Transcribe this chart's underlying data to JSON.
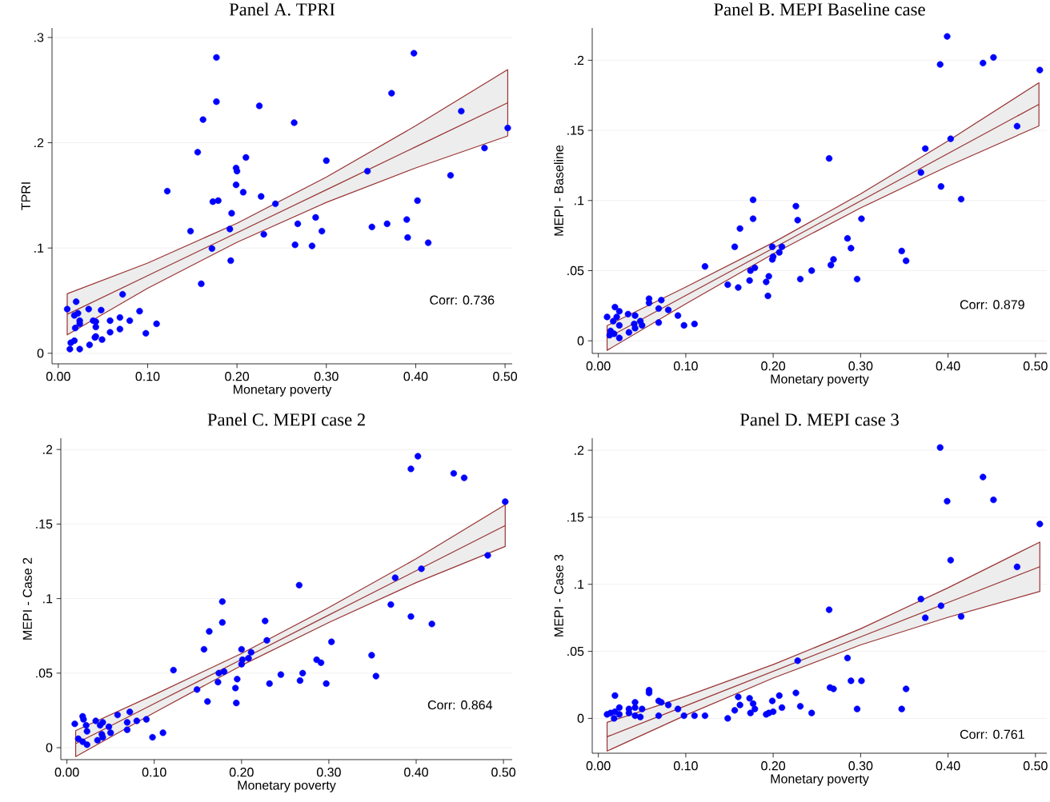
{
  "chart_data": [
    {
      "type": "scatter",
      "title": "Panel A. TPRI",
      "xlabel": "Monetary poverty",
      "ylabel": "TPRI",
      "grid": "y",
      "xlim": [
        -0.007,
        0.508
      ],
      "ylim": [
        -0.01,
        0.309
      ],
      "xticks": [
        {
          "value": 0,
          "label": "0.00"
        },
        {
          "value": 0.1,
          "label": "0.10"
        },
        {
          "value": 0.2,
          "label": "0.20"
        },
        {
          "value": 0.3,
          "label": "0.30"
        },
        {
          "value": 0.4,
          "label": "0.40"
        },
        {
          "value": 0.5,
          "label": "0.50"
        }
      ],
      "yticks": [
        0,
        {
          "value": 0.1,
          "label": ".1"
        },
        {
          "value": 0.2,
          "label": ".2"
        },
        {
          "value": 0.3,
          "label": ".3"
        }
      ],
      "series": [
        {
          "marker": "circle",
          "color": "#0000ff",
          "x": [
            0.177,
            0.177,
            0.162,
            0.225,
            0.264,
            0.156,
            0.21,
            0.199,
            0.2,
            0.3,
            0.122,
            0.199,
            0.207,
            0.173,
            0.179,
            0.227,
            0.243,
            0.194,
            0.192,
            0.23,
            0.268,
            0.288,
            0.295,
            0.265,
            0.284,
            0.148,
            0.172,
            0.193,
            0.16,
            0.346,
            0.373,
            0.398,
            0.451,
            0.503,
            0.477,
            0.439,
            0.402,
            0.39,
            0.391,
            0.414,
            0.368,
            0.351,
            0.01,
            0.02,
            0.018,
            0.022,
            0.034,
            0.048,
            0.072,
            0.024,
            0.024,
            0.039,
            0.042,
            0.042,
            0.019,
            0.058,
            0.069,
            0.08,
            0.091,
            0.11,
            0.098,
            0.069,
            0.058,
            0.049,
            0.041,
            0.042,
            0.035,
            0.018,
            0.014,
            0.013,
            0.024
          ],
          "values": [
            0.281,
            0.239,
            0.222,
            0.235,
            0.219,
            0.191,
            0.186,
            0.176,
            0.173,
            0.183,
            0.154,
            0.16,
            0.153,
            0.144,
            0.145,
            0.149,
            0.142,
            0.133,
            0.118,
            0.113,
            0.123,
            0.129,
            0.116,
            0.103,
            0.102,
            0.116,
            0.0995,
            0.088,
            0.066,
            0.173,
            0.247,
            0.285,
            0.23,
            0.214,
            0.195,
            0.169,
            0.145,
            0.127,
            0.11,
            0.105,
            0.123,
            0.12,
            0.042,
            0.049,
            0.036,
            0.038,
            0.042,
            0.041,
            0.056,
            0.031,
            0.028,
            0.031,
            0.03,
            0.025,
            0.024,
            0.031,
            0.034,
            0.031,
            0.04,
            0.028,
            0.019,
            0.023,
            0.02,
            0.013,
            0.015,
            0.016,
            0.008,
            0.012,
            0.01,
            0.004,
            0.004
          ]
        },
        {
          "type": "line",
          "marker": "none",
          "color": "#993333",
          "x": [
            0.01,
            0.1,
            0.2,
            0.3,
            0.4,
            0.503
          ],
          "values": [
            0.037,
            0.0737,
            0.1145,
            0.1553,
            0.1961,
            0.238
          ],
          "lower": [
            0.0175,
            0.0617,
            0.1055,
            0.1433,
            0.1761,
            0.2065
          ],
          "upper": [
            0.0565,
            0.0857,
            0.1235,
            0.1673,
            0.2161,
            0.2695
          ]
        }
      ],
      "annotations": [
        "Corr: 0.736"
      ]
    },
    {
      "type": "scatter",
      "title": "Panel B. MEPI Baseline case",
      "xlabel": "Monetary poverty",
      "ylabel": "MEPI - Baseline",
      "grid": "y",
      "xlim": [
        -0.007,
        0.513
      ],
      "ylim": [
        -0.009,
        0.223
      ],
      "xticks": [
        {
          "value": 0,
          "label": "0.00"
        },
        {
          "value": 0.1,
          "label": "0.10"
        },
        {
          "value": 0.2,
          "label": "0.20"
        },
        {
          "value": 0.3,
          "label": "0.30"
        },
        {
          "value": 0.4,
          "label": "0.40"
        },
        {
          "value": 0.5,
          "label": "0.50"
        }
      ],
      "yticks": [
        0,
        {
          "value": 0.05,
          "label": ".05"
        },
        {
          "value": 0.1,
          "label": ".1"
        },
        {
          "value": 0.15,
          "label": ".15"
        },
        {
          "value": 0.2,
          "label": ".2"
        }
      ],
      "series": [
        {
          "marker": "circle",
          "color": "#0000ff",
          "x": [
            0.399,
            0.391,
            0.44,
            0.452,
            0.505,
            0.479,
            0.403,
            0.374,
            0.369,
            0.392,
            0.415,
            0.264,
            0.177,
            0.177,
            0.162,
            0.226,
            0.228,
            0.301,
            0.285,
            0.289,
            0.347,
            0.352,
            0.156,
            0.199,
            0.21,
            0.207,
            0.2,
            0.199,
            0.179,
            0.174,
            0.122,
            0.244,
            0.269,
            0.266,
            0.296,
            0.231,
            0.195,
            0.192,
            0.173,
            0.148,
            0.16,
            0.194,
            0.11,
            0.098,
            0.091,
            0.08,
            0.072,
            0.069,
            0.058,
            0.058,
            0.069,
            0.05,
            0.048,
            0.042,
            0.041,
            0.042,
            0.035,
            0.034,
            0.024,
            0.019,
            0.021,
            0.017,
            0.024,
            0.024,
            0.018,
            0.014,
            0.013,
            0.01
          ],
          "values": [
            0.217,
            0.197,
            0.198,
            0.202,
            0.193,
            0.153,
            0.144,
            0.137,
            0.12,
            0.11,
            0.101,
            0.13,
            0.1005,
            0.087,
            0.08,
            0.096,
            0.086,
            0.087,
            0.073,
            0.066,
            0.064,
            0.057,
            0.067,
            0.067,
            0.067,
            0.063,
            0.06,
            0.058,
            0.052,
            0.05,
            0.053,
            0.05,
            0.058,
            0.054,
            0.044,
            0.044,
            0.046,
            0.042,
            0.043,
            0.04,
            0.038,
            0.032,
            0.012,
            0.011,
            0.018,
            0.022,
            0.029,
            0.023,
            0.03,
            0.027,
            0.013,
            0.011,
            0.014,
            0.018,
            0.012,
            0.009,
            0.006,
            0.019,
            0.021,
            0.024,
            0.017,
            0.014,
            0.011,
            0.002,
            0.005,
            0.007,
            0.004,
            0.017
          ]
        },
        {
          "type": "line",
          "marker": "none",
          "color": "#993333",
          "x": [
            0.01,
            0.1,
            0.2,
            0.3,
            0.4,
            0.504
          ],
          "values": [
            0.002,
            0.0323,
            0.066,
            0.0997,
            0.1335,
            0.1686
          ],
          "lower": [
            -0.0068,
            0.0263,
            0.062,
            0.0947,
            0.1245,
            0.1532
          ],
          "upper": [
            0.0108,
            0.0383,
            0.07,
            0.1047,
            0.1425,
            0.184
          ]
        }
      ],
      "annotations": [
        "Corr: 0.879"
      ]
    },
    {
      "type": "scatter",
      "title": "Panel C. MEPI case 2",
      "xlabel": "Monetary poverty",
      "ylabel": "MEPI - Case 2",
      "grid": "y",
      "xlim": [
        -0.007,
        0.51
      ],
      "ylim": [
        -0.008,
        0.2076
      ],
      "xticks": [
        {
          "value": 0,
          "label": "0.00"
        },
        {
          "value": 0.1,
          "label": "0.10"
        },
        {
          "value": 0.2,
          "label": "0.20"
        },
        {
          "value": 0.3,
          "label": "0.30"
        },
        {
          "value": 0.4,
          "label": "0.40"
        },
        {
          "value": 0.5,
          "label": "0.50"
        }
      ],
      "yticks": [
        0,
        {
          "value": 0.05,
          "label": ".05"
        },
        {
          "value": 0.1,
          "label": ".1"
        },
        {
          "value": 0.15,
          "label": ".15"
        },
        {
          "value": 0.2,
          "label": ".2"
        }
      ],
      "series": [
        {
          "marker": "circle",
          "color": "#0000ff",
          "x": [
            0.402,
            0.394,
            0.443,
            0.455,
            0.502,
            0.482,
            0.406,
            0.376,
            0.371,
            0.394,
            0.418,
            0.266,
            0.178,
            0.178,
            0.163,
            0.157,
            0.227,
            0.229,
            0.303,
            0.2,
            0.211,
            0.208,
            0.201,
            0.2,
            0.174,
            0.18,
            0.122,
            0.149,
            0.173,
            0.195,
            0.193,
            0.161,
            0.194,
            0.232,
            0.245,
            0.27,
            0.267,
            0.286,
            0.291,
            0.297,
            0.349,
            0.354,
            0.11,
            0.098,
            0.091,
            0.08,
            0.072,
            0.069,
            0.069,
            0.058,
            0.05,
            0.048,
            0.041,
            0.04,
            0.041,
            0.038,
            0.035,
            0.033,
            0.023,
            0.023,
            0.019,
            0.018,
            0.018,
            0.013,
            0.009,
            0.022
          ],
          "values": [
            0.1955,
            0.187,
            0.184,
            0.181,
            0.165,
            0.129,
            0.12,
            0.114,
            0.096,
            0.088,
            0.083,
            0.109,
            0.098,
            0.084,
            0.078,
            0.066,
            0.085,
            0.072,
            0.071,
            0.066,
            0.064,
            0.06,
            0.059,
            0.056,
            0.05,
            0.051,
            0.052,
            0.039,
            0.044,
            0.046,
            0.04,
            0.031,
            0.03,
            0.043,
            0.049,
            0.05,
            0.045,
            0.059,
            0.057,
            0.043,
            0.062,
            0.048,
            0.01,
            0.007,
            0.019,
            0.018,
            0.024,
            0.017,
            0.012,
            0.022,
            0.01,
            0.014,
            0.017,
            0.009,
            0.007,
            0.015,
            0.005,
            0.018,
            0.011,
            0.002,
            0.019,
            0.021,
            0.004,
            0.006,
            0.016,
            0.015
          ]
        },
        {
          "type": "line",
          "marker": "none",
          "color": "#993333",
          "x": [
            0.01,
            0.1,
            0.2,
            0.3,
            0.4,
            0.502
          ],
          "values": [
            0.0027,
            0.0295,
            0.0592,
            0.089,
            0.1187,
            0.149
          ],
          "lower": [
            -0.006,
            0.0235,
            0.0552,
            0.084,
            0.1107,
            0.135
          ],
          "upper": [
            0.0114,
            0.0355,
            0.0632,
            0.094,
            0.1267,
            0.163
          ]
        }
      ],
      "annotations": [
        "Corr: 0.864"
      ]
    },
    {
      "type": "scatter",
      "title": "Panel D. MEPI case 3",
      "xlabel": "Monetary poverty",
      "ylabel": "MEPI - Case 3",
      "grid": "y",
      "xlim": [
        -0.007,
        0.513
      ],
      "ylim": [
        -0.026,
        0.209
      ],
      "xticks": [
        {
          "value": 0,
          "label": "0.00"
        },
        {
          "value": 0.1,
          "label": "0.10"
        },
        {
          "value": 0.2,
          "label": "0.20"
        },
        {
          "value": 0.3,
          "label": "0.30"
        },
        {
          "value": 0.4,
          "label": "0.40"
        },
        {
          "value": 0.5,
          "label": "0.50"
        }
      ],
      "yticks": [
        0,
        {
          "value": 0.05,
          "label": ".05"
        },
        {
          "value": 0.1,
          "label": ".1"
        },
        {
          "value": 0.15,
          "label": ".15"
        },
        {
          "value": 0.2,
          "label": ".2"
        }
      ],
      "series": [
        {
          "marker": "circle",
          "color": "#0000ff",
          "x": [
            0.391,
            0.44,
            0.399,
            0.452,
            0.505,
            0.403,
            0.479,
            0.369,
            0.392,
            0.374,
            0.415,
            0.264,
            0.228,
            0.285,
            0.289,
            0.301,
            0.265,
            0.269,
            0.352,
            0.296,
            0.347,
            0.226,
            0.207,
            0.199,
            0.2,
            0.192,
            0.195,
            0.21,
            0.231,
            0.244,
            0.16,
            0.173,
            0.162,
            0.177,
            0.179,
            0.174,
            0.156,
            0.148,
            0.122,
            0.11,
            0.098,
            0.091,
            0.08,
            0.072,
            0.069,
            0.069,
            0.058,
            0.058,
            0.05,
            0.048,
            0.042,
            0.042,
            0.042,
            0.035,
            0.035,
            0.024,
            0.019,
            0.024,
            0.019,
            0.018,
            0.014,
            0.01
          ],
          "values": [
            0.202,
            0.18,
            0.162,
            0.163,
            0.145,
            0.118,
            0.113,
            0.089,
            0.084,
            0.075,
            0.076,
            0.081,
            0.043,
            0.045,
            0.028,
            0.028,
            0.023,
            0.022,
            0.022,
            0.007,
            0.007,
            0.019,
            0.017,
            0.013,
            0.005,
            0.003,
            0.004,
            0.008,
            0.009,
            0.004,
            0.016,
            0.015,
            0.01,
            0.011,
            0.007,
            0.004,
            0.006,
            0.0,
            0.002,
            0.002,
            0.002,
            0.007,
            0.01,
            0.012,
            0.013,
            0.002,
            0.021,
            0.019,
            0.007,
            0.001,
            0.002,
            0.012,
            0.008,
            0.007,
            0.004,
            0.008,
            0.017,
            0.003,
            0.005,
            0.0,
            0.004,
            0.003
          ]
        },
        {
          "type": "line",
          "marker": "none",
          "color": "#993333",
          "x": [
            0.01,
            0.1,
            0.2,
            0.3,
            0.4,
            0.505
          ],
          "values": [
            -0.0137,
            0.0094,
            0.0351,
            0.0608,
            0.0864,
            0.1131
          ],
          "lower": [
            -0.0244,
            0.0024,
            0.0301,
            0.0548,
            0.0754,
            0.0947
          ],
          "upper": [
            -0.003,
            0.0164,
            0.0401,
            0.0668,
            0.0974,
            0.1315
          ]
        }
      ],
      "annotations": [
        "Corr: 0.761"
      ]
    }
  ]
}
